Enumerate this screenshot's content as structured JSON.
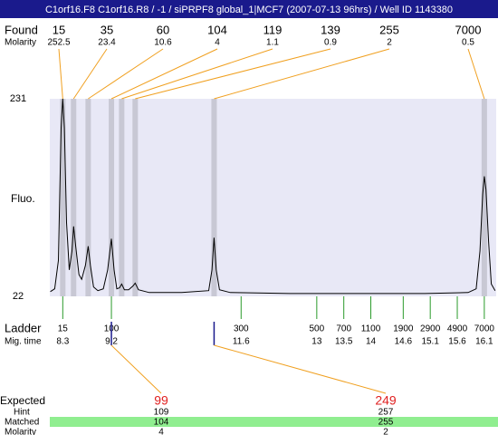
{
  "title": "C1orf16.F8  C1orf16.R8 / -1 / siPRPF8 global_1|MCF7 (2007-07-13 96hrs) / Well ID 1143380",
  "row_labels": {
    "found": "Found",
    "found_molarity": "Molarity",
    "ladder": "Ladder",
    "mig_time": "Mig. time",
    "expected": "Expected",
    "hint": "Hint",
    "matched": "Matched",
    "molarity": "Molarity"
  },
  "y_label": "Fluo.",
  "ylim": [
    22,
    231
  ],
  "yticks": [
    22,
    231
  ],
  "xlim": [
    8.06,
    16.32
  ],
  "found": [
    {
      "size": 15,
      "molarity": 252.5,
      "time": 8.3
    },
    {
      "size": 35,
      "molarity": 23.4,
      "time": 8.5
    },
    {
      "size": 60,
      "molarity": 10.6,
      "time": 8.77
    },
    {
      "size": 104,
      "molarity": 4,
      "time": 9.2
    },
    {
      "size": 119,
      "molarity": 1.1,
      "time": 9.39
    },
    {
      "size": 139,
      "molarity": 0.9,
      "time": 9.64
    },
    {
      "size": 255,
      "molarity": 2,
      "time": 11.1
    },
    {
      "size": 7000,
      "molarity": 0.5,
      "time": 16.1
    }
  ],
  "ladder": [
    {
      "size": 15,
      "time": 8.3
    },
    {
      "size": 100,
      "time": 9.2
    },
    {
      "size": 300,
      "time": 11.6
    },
    {
      "size": 500,
      "time": 13
    },
    {
      "size": 700,
      "time": 13.5
    },
    {
      "size": 1100,
      "time": 14
    },
    {
      "size": 1900,
      "time": 14.6
    },
    {
      "size": 2900,
      "time": 15.1
    },
    {
      "size": 4900,
      "time": 15.6
    },
    {
      "size": 7000,
      "time": 16.1
    }
  ],
  "expected": [
    {
      "size": 99,
      "hint": 109,
      "matched": 104,
      "molarity": 4,
      "time": 9.2
    },
    {
      "size": 249,
      "hint": 257,
      "matched": 255,
      "molarity": 2,
      "time": 11.1
    }
  ],
  "trace": {
    "x": [
      8.07,
      8.15,
      8.22,
      8.27,
      8.3,
      8.33,
      8.37,
      8.42,
      8.47,
      8.5,
      8.54,
      8.6,
      8.65,
      8.72,
      8.77,
      8.81,
      8.87,
      8.95,
      9.05,
      9.13,
      9.2,
      9.25,
      9.3,
      9.35,
      9.39,
      9.44,
      9.52,
      9.6,
      9.64,
      9.7,
      9.9,
      10.5,
      11.0,
      11.06,
      11.1,
      11.14,
      11.2,
      11.4,
      12.5,
      14,
      15,
      15.8,
      15.95,
      16.02,
      16.07,
      16.1,
      16.13,
      16.18,
      16.23,
      16.3
    ],
    "y": [
      27,
      30,
      60,
      200,
      231,
      200,
      100,
      50,
      70,
      96,
      75,
      45,
      40,
      55,
      75,
      55,
      32,
      28,
      30,
      50,
      83,
      50,
      30,
      31,
      35,
      29,
      29,
      33,
      36,
      29,
      26,
      26,
      28,
      50,
      84,
      50,
      29,
      26,
      25,
      25,
      25,
      26,
      30,
      70,
      130,
      149,
      135,
      80,
      35,
      28
    ]
  }
}
